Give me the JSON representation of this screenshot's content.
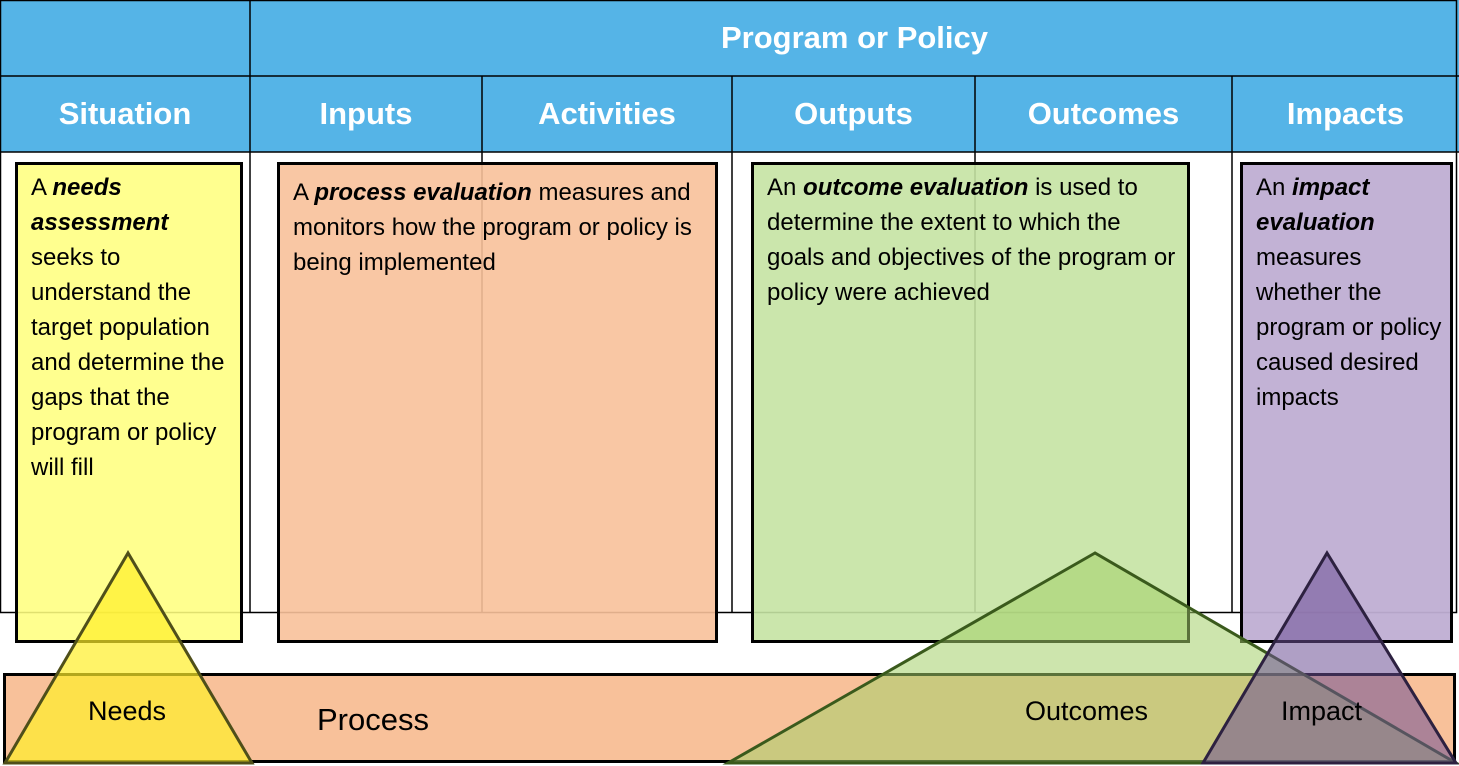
{
  "header": {
    "group_title": "Program or Policy",
    "columns": [
      "Situation",
      "Inputs",
      "Activities",
      "Outputs",
      "Outcomes",
      "Impacts"
    ]
  },
  "boxes": {
    "needs": {
      "lead": "A ",
      "term": "needs assessment",
      "rest": " seeks to understand the target population and determine the gaps that the program or policy will fill"
    },
    "process": {
      "lead": "A ",
      "term": "process evaluation",
      "rest": " measures and monitors how the program or policy is being implemented"
    },
    "outcome": {
      "lead": "An ",
      "term": "outcome evaluation",
      "rest": " is used to determine the extent to which the goals and objectives of the program or policy were achieved"
    },
    "impact": {
      "lead": "An ",
      "term": "impact evaluation",
      "rest": " measures whether the program or policy caused desired impacts"
    }
  },
  "bottom_labels": {
    "needs": "Needs",
    "process": "Process",
    "outcomes": "Outcomes",
    "impact": "Impact"
  },
  "colors": {
    "header_blue": "#55b4e7",
    "needs_yellow": "#ffff80",
    "process_orange": "#f8c19a",
    "outcome_green": "#c5e3a3",
    "impact_purple": "#bfaed3",
    "needs_triangle": "#ffff33",
    "outcome_triangle": "#a4cf6a",
    "impact_triangle": "#8d74b3"
  }
}
